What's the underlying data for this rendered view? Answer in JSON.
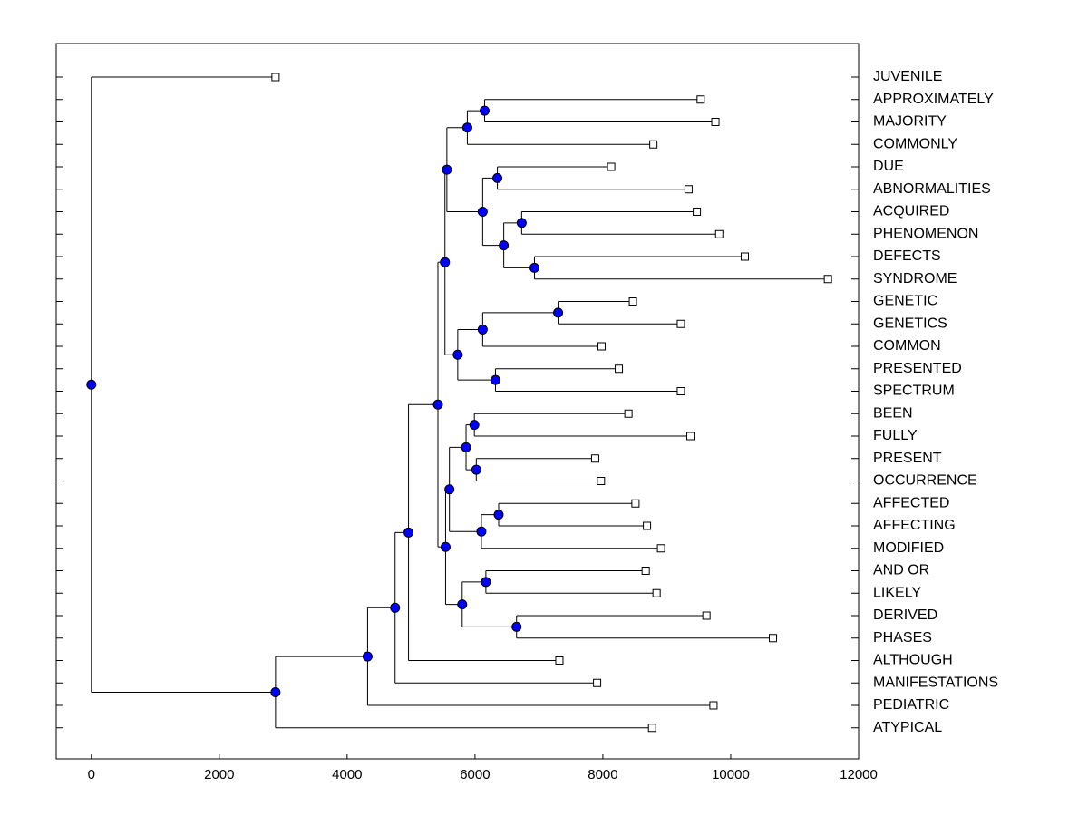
{
  "chart_data": {
    "type": "dendrogram",
    "title": "",
    "xlabel": "",
    "ylabel": "",
    "xlim": [
      -550,
      12000
    ],
    "xticks": [
      0,
      2000,
      4000,
      6000,
      8000,
      10000,
      12000
    ],
    "tick_labels": [
      "0",
      "2000",
      "4000",
      "6000",
      "8000",
      "10000",
      "12000"
    ],
    "grid": false,
    "colors": {
      "node": "#0000ff",
      "leaf": "#ffffff",
      "line": "#000000"
    },
    "leaves": [
      {
        "id": "L0",
        "name": "JUVENILE",
        "x": 2880
      },
      {
        "id": "L1",
        "name": "APPROXIMATELY",
        "x": 9530
      },
      {
        "id": "L2",
        "name": "MAJORITY",
        "x": 9760
      },
      {
        "id": "L3",
        "name": "COMMONLY",
        "x": 8790
      },
      {
        "id": "L4",
        "name": "DUE",
        "x": 8130
      },
      {
        "id": "L5",
        "name": "ABNORMALITIES",
        "x": 9340
      },
      {
        "id": "L6",
        "name": "ACQUIRED",
        "x": 9470
      },
      {
        "id": "L7",
        "name": "PHENOMENON",
        "x": 9820
      },
      {
        "id": "L8",
        "name": "DEFECTS",
        "x": 10220
      },
      {
        "id": "L9",
        "name": "SYNDROME",
        "x": 11520
      },
      {
        "id": "L10",
        "name": "GENETIC",
        "x": 8470
      },
      {
        "id": "L11",
        "name": "GENETICS",
        "x": 9220
      },
      {
        "id": "L12",
        "name": "COMMON",
        "x": 7980
      },
      {
        "id": "L13",
        "name": "PRESENTED",
        "x": 8250
      },
      {
        "id": "L14",
        "name": "SPECTRUM",
        "x": 9220
      },
      {
        "id": "L15",
        "name": "BEEN",
        "x": 8400
      },
      {
        "id": "L16",
        "name": "FULLY",
        "x": 9370
      },
      {
        "id": "L17",
        "name": "PRESENT",
        "x": 7880
      },
      {
        "id": "L18",
        "name": "OCCURRENCE",
        "x": 7970
      },
      {
        "id": "L19",
        "name": "AFFECTED",
        "x": 8510
      },
      {
        "id": "L20",
        "name": "AFFECTING",
        "x": 8690
      },
      {
        "id": "L21",
        "name": "MODIFIED",
        "x": 8910
      },
      {
        "id": "L22",
        "name": "AND OR",
        "x": 8670
      },
      {
        "id": "L23",
        "name": "LIKELY",
        "x": 8840
      },
      {
        "id": "L24",
        "name": "DERIVED",
        "x": 9620
      },
      {
        "id": "L25",
        "name": "PHASES",
        "x": 10660
      },
      {
        "id": "L26",
        "name": "ALTHOUGH",
        "x": 7320
      },
      {
        "id": "L27",
        "name": "MANIFESTATIONS",
        "x": 7910
      },
      {
        "id": "L28",
        "name": "PEDIATRIC",
        "x": 9730
      },
      {
        "id": "L29",
        "name": "ATYPICAL",
        "x": 8770
      }
    ],
    "merges": [
      {
        "id": "N1",
        "x": 6150,
        "children": [
          "L1",
          "L2"
        ]
      },
      {
        "id": "N2",
        "x": 5880,
        "children": [
          "N1",
          "L3"
        ]
      },
      {
        "id": "N3",
        "x": 6350,
        "children": [
          "L4",
          "L5"
        ]
      },
      {
        "id": "N4",
        "x": 6730,
        "children": [
          "L6",
          "L7"
        ]
      },
      {
        "id": "N5",
        "x": 6930,
        "children": [
          "L8",
          "L9"
        ]
      },
      {
        "id": "N6",
        "x": 6450,
        "children": [
          "N4",
          "N5"
        ]
      },
      {
        "id": "N7",
        "x": 6120,
        "children": [
          "N3",
          "N6"
        ]
      },
      {
        "id": "N8",
        "x": 5560,
        "children": [
          "N2",
          "N7"
        ]
      },
      {
        "id": "N9",
        "x": 7300,
        "children": [
          "L10",
          "L11"
        ]
      },
      {
        "id": "N10",
        "x": 6120,
        "children": [
          "N9",
          "L12"
        ]
      },
      {
        "id": "N11",
        "x": 6320,
        "children": [
          "L13",
          "L14"
        ]
      },
      {
        "id": "N12",
        "x": 5730,
        "children": [
          "N10",
          "N11"
        ]
      },
      {
        "id": "N13",
        "x": 5530,
        "children": [
          "N8",
          "N12"
        ]
      },
      {
        "id": "N14",
        "x": 5990,
        "children": [
          "L15",
          "L16"
        ]
      },
      {
        "id": "N15",
        "x": 6020,
        "children": [
          "L17",
          "L18"
        ]
      },
      {
        "id": "N16",
        "x": 5860,
        "children": [
          "N14",
          "N15"
        ]
      },
      {
        "id": "N17",
        "x": 6370,
        "children": [
          "L19",
          "L20"
        ]
      },
      {
        "id": "N18",
        "x": 6100,
        "children": [
          "N17",
          "L21"
        ]
      },
      {
        "id": "N19",
        "x": 5600,
        "children": [
          "N16",
          "N18"
        ]
      },
      {
        "id": "N20",
        "x": 6170,
        "children": [
          "L22",
          "L23"
        ]
      },
      {
        "id": "N21",
        "x": 6650,
        "children": [
          "L24",
          "L25"
        ]
      },
      {
        "id": "N22",
        "x": 5800,
        "children": [
          "N20",
          "N21"
        ]
      },
      {
        "id": "N23",
        "x": 5540,
        "children": [
          "N19",
          "N22"
        ]
      },
      {
        "id": "N24",
        "x": 5420,
        "children": [
          "N13",
          "N23"
        ]
      },
      {
        "id": "N25",
        "x": 4960,
        "children": [
          "N24",
          "L26"
        ]
      },
      {
        "id": "N26",
        "x": 4750,
        "children": [
          "N25",
          "L27"
        ]
      },
      {
        "id": "N27",
        "x": 4320,
        "children": [
          "N26",
          "L28"
        ]
      },
      {
        "id": "N28",
        "x": 2880,
        "children": [
          "N27",
          "L29"
        ]
      },
      {
        "id": "N29",
        "x": 0,
        "children": [
          "L0",
          "N28"
        ]
      }
    ]
  }
}
